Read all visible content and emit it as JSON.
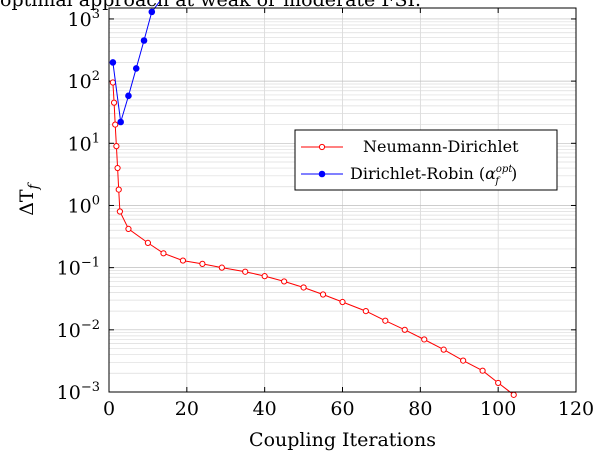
{
  "caption_fragment": "optimal approach at weak or moderate FSI.",
  "chart_data": {
    "type": "line",
    "xlabel": "Coupling Iterations",
    "ylabel": "ΔT_f",
    "xlim": [
      0,
      120
    ],
    "ylim": [
      0.001,
      1500
    ],
    "yscale": "log",
    "x_ticks": [
      0,
      20,
      40,
      60,
      80,
      100,
      120
    ],
    "y_ticks": [
      {
        "value": 0.001,
        "base": "10",
        "exp": "−3"
      },
      {
        "value": 0.01,
        "base": "10",
        "exp": "−2"
      },
      {
        "value": 0.1,
        "base": "10",
        "exp": "−1"
      },
      {
        "value": 1,
        "base": "10",
        "exp": "0"
      },
      {
        "value": 10,
        "base": "10",
        "exp": "1"
      },
      {
        "value": 100,
        "base": "10",
        "exp": "2"
      },
      {
        "value": 1000,
        "base": "10",
        "exp": "3"
      }
    ],
    "grid": true,
    "legend_position": "right",
    "series": [
      {
        "name": "Neumann-Dirichlet",
        "color": "#ff0000",
        "marker": "open-circle",
        "x": [
          1,
          1.3,
          1.6,
          1.9,
          2.2,
          2.5,
          2.8,
          5,
          10,
          14,
          19,
          24,
          29,
          35,
          40,
          45,
          50,
          55,
          60,
          66,
          71,
          76,
          81,
          86,
          91,
          96,
          100,
          104
        ],
        "y": [
          95,
          45,
          20,
          9,
          4,
          1.8,
          0.8,
          0.42,
          0.25,
          0.17,
          0.13,
          0.115,
          0.1,
          0.086,
          0.073,
          0.06,
          0.048,
          0.037,
          0.028,
          0.02,
          0.014,
          0.01,
          0.007,
          0.0048,
          0.0032,
          0.0022,
          0.0014,
          0.0009
        ]
      },
      {
        "name": "Dirichlet-Robin",
        "legend_prefix": "Dirichlet-Robin (",
        "legend_symbol": "α",
        "legend_sup": "opt",
        "legend_sub": "f",
        "legend_suffix": ")",
        "color": "#0000ff",
        "marker": "filled-circle",
        "x": [
          1,
          3,
          5,
          7,
          9,
          11,
          13
        ],
        "y": [
          200,
          22,
          58,
          160,
          450,
          1300,
          1900
        ]
      }
    ]
  }
}
